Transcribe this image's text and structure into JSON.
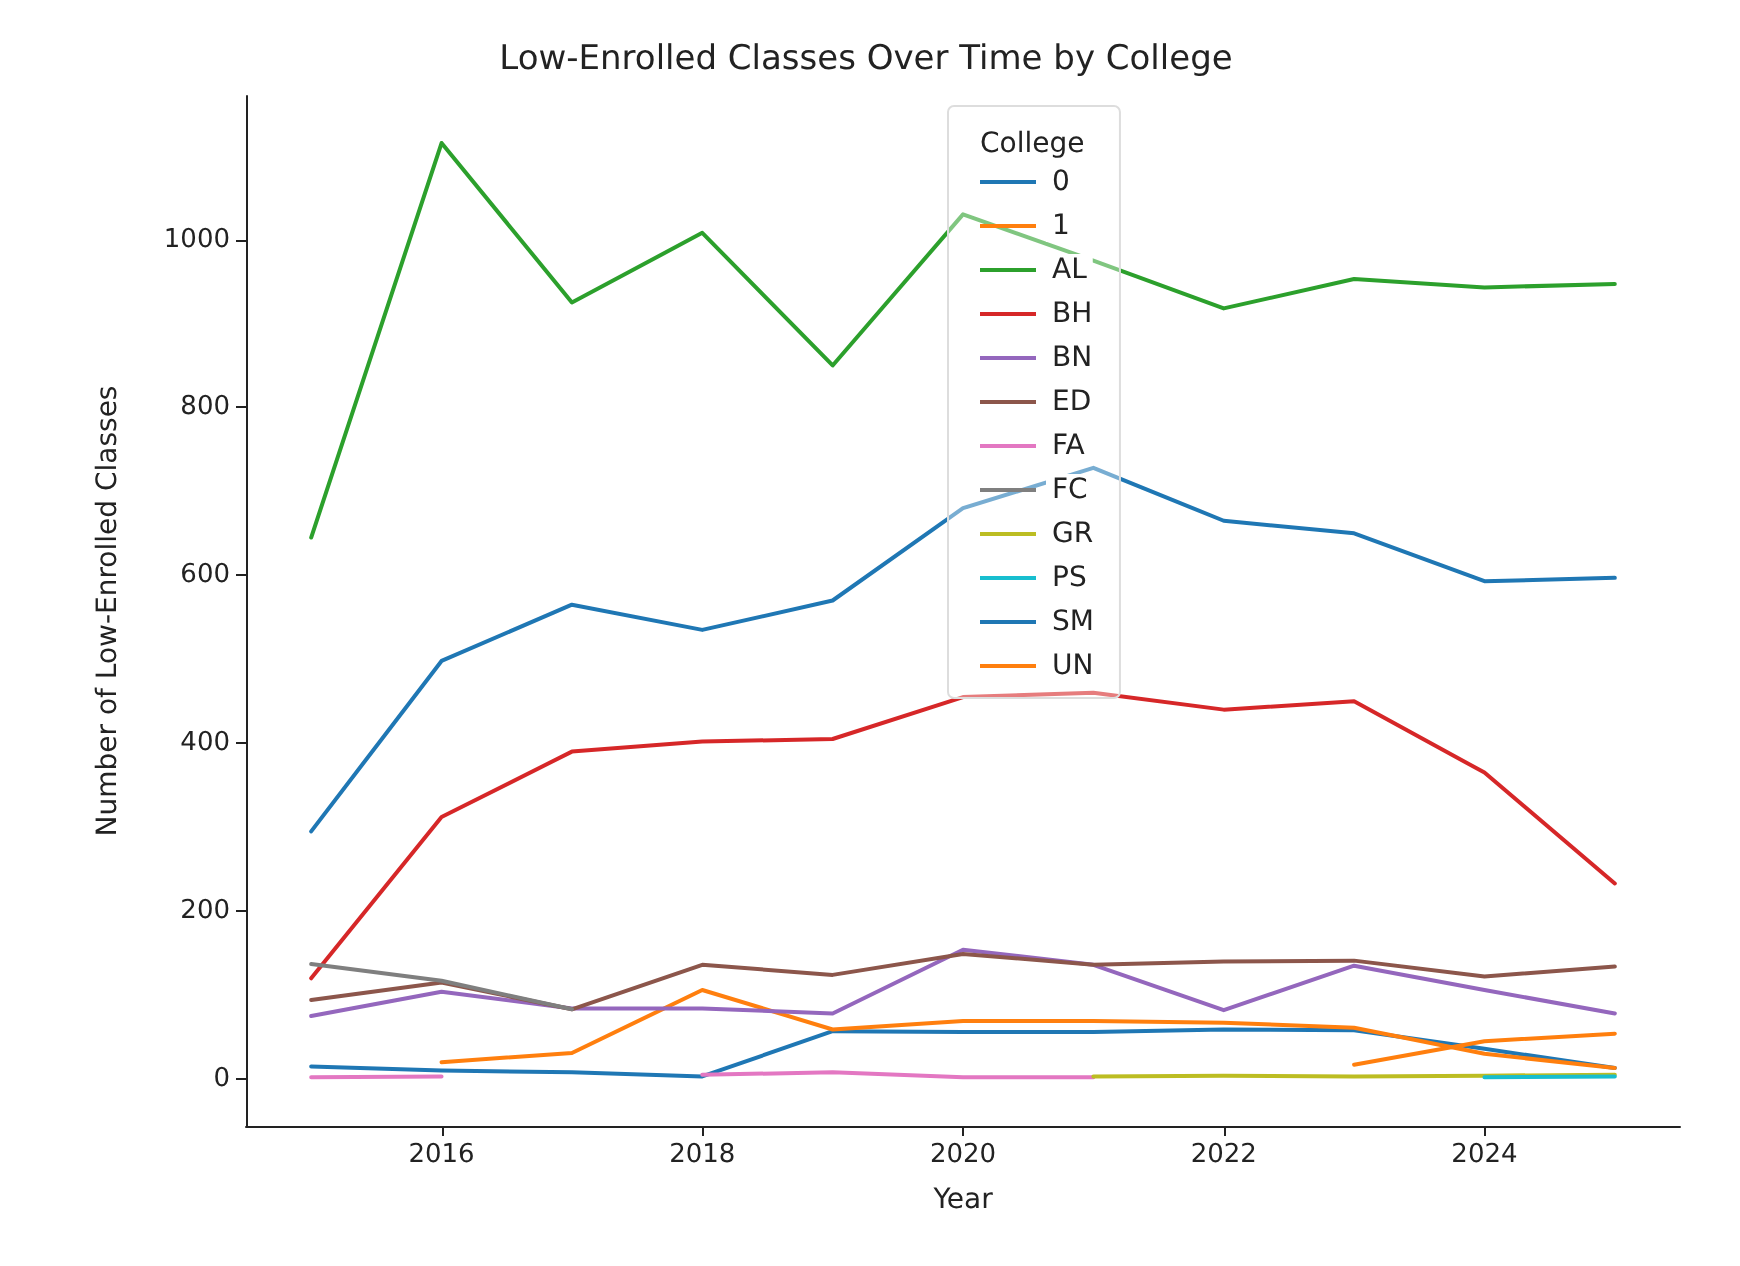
{
  "chart_data": {
    "type": "line",
    "title": "Low-Enrolled Classes Over Time by College",
    "xlabel": "Year",
    "ylabel": "Number of Low-Enrolled Classes",
    "legend_title": "College",
    "legend": "top",
    "grid": false,
    "marker": "none",
    "line_style": "solid",
    "x": [
      2015,
      2016,
      2017,
      2018,
      2019,
      2020,
      2021,
      2022,
      2023,
      2024,
      2025
    ],
    "xlim": [
      2014.5,
      2025.5
    ],
    "xticks": [
      2016,
      2018,
      2020,
      2022,
      2024
    ],
    "ylim": [
      -56,
      1171
    ],
    "yticks": [
      0,
      200,
      400,
      600,
      800,
      1000
    ],
    "series": [
      {
        "name": "0",
        "color": "#1f77b4",
        "values": [
          15,
          10,
          8,
          3,
          57,
          56,
          56,
          59,
          58,
          36,
          13
        ]
      },
      {
        "name": "1",
        "color": "#ff7f0e",
        "values": [
          null,
          20,
          31,
          106,
          59,
          69,
          69,
          67,
          61,
          30,
          13
        ]
      },
      {
        "name": "AL",
        "color": "#2ca02c",
        "values": [
          645,
          1115,
          925,
          1008,
          850,
          1030,
          975,
          918,
          953,
          943,
          947
        ]
      },
      {
        "name": "BH",
        "color": "#d62728",
        "values": [
          120,
          312,
          390,
          402,
          405,
          455,
          460,
          440,
          450,
          365,
          233
        ]
      },
      {
        "name": "BN",
        "color": "#9467bd",
        "values": [
          75,
          104,
          84,
          84,
          78,
          154,
          136,
          82,
          135,
          106,
          78
        ]
      },
      {
        "name": "ED",
        "color": "#8c564b",
        "values": [
          94,
          115,
          83,
          136,
          124,
          149,
          136,
          140,
          141,
          122,
          134
        ]
      },
      {
        "name": "FA",
        "color": "#e377c2",
        "values": [
          2,
          3,
          null,
          5,
          8,
          2,
          2,
          null,
          null,
          null,
          null
        ]
      },
      {
        "name": "FC",
        "color": "#7f7f7f",
        "values": [
          137,
          117,
          83,
          null,
          null,
          null,
          null,
          null,
          null,
          null,
          null
        ]
      },
      {
        "name": "GR",
        "color": "#bcbd22",
        "values": [
          null,
          null,
          null,
          null,
          null,
          null,
          3,
          4,
          3,
          4,
          5
        ]
      },
      {
        "name": "PS",
        "color": "#17becf",
        "values": [
          null,
          null,
          null,
          null,
          null,
          null,
          null,
          null,
          null,
          2,
          3
        ]
      },
      {
        "name": "SM",
        "color": "#1f77b4",
        "values": [
          295,
          498,
          565,
          535,
          570,
          680,
          728,
          665,
          650,
          593,
          597
        ]
      },
      {
        "name": "UN",
        "color": "#ff7f0e",
        "values": [
          null,
          null,
          null,
          null,
          null,
          null,
          null,
          null,
          17,
          45,
          54
        ]
      }
    ]
  }
}
